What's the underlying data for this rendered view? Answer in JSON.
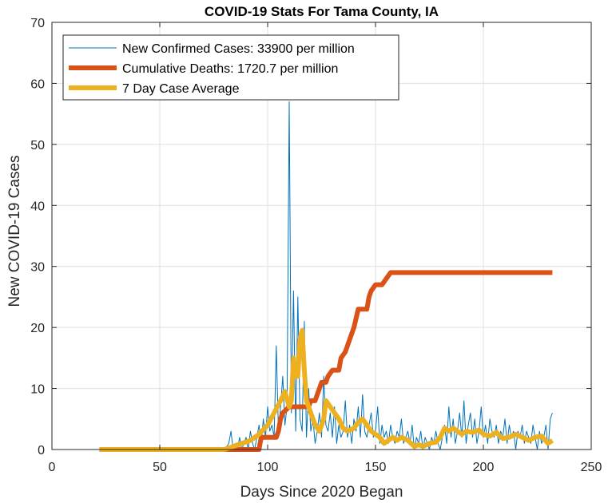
{
  "chart_data": {
    "type": "line",
    "title": "COVID-19 Stats For Tama County, IA",
    "xlabel": "Days Since 2020 Began",
    "ylabel": "New COVID-19 Cases",
    "xlim": [
      0,
      250
    ],
    "ylim": [
      0,
      70
    ],
    "xticks": [
      0,
      50,
      100,
      150,
      200,
      250
    ],
    "yticks": [
      0,
      10,
      20,
      30,
      40,
      50,
      60,
      70
    ],
    "grid": true,
    "legend_position": "top-left",
    "series": [
      {
        "name": "New Confirmed Cases: 33900 per million",
        "color": "#0072BD",
        "width": "thin",
        "points": [
          [
            22,
            0
          ],
          [
            40,
            0
          ],
          [
            60,
            0
          ],
          [
            80,
            0
          ],
          [
            82,
            1
          ],
          [
            83,
            3
          ],
          [
            84,
            0
          ],
          [
            85,
            1
          ],
          [
            86,
            0
          ],
          [
            87,
            2
          ],
          [
            88,
            0
          ],
          [
            89,
            1
          ],
          [
            90,
            2
          ],
          [
            91,
            0
          ],
          [
            92,
            3
          ],
          [
            93,
            1
          ],
          [
            94,
            0
          ],
          [
            95,
            2
          ],
          [
            96,
            4
          ],
          [
            97,
            1
          ],
          [
            98,
            5
          ],
          [
            99,
            2
          ],
          [
            100,
            7
          ],
          [
            101,
            3
          ],
          [
            102,
            4
          ],
          [
            103,
            2
          ],
          [
            104,
            17
          ],
          [
            105,
            3
          ],
          [
            106,
            7
          ],
          [
            107,
            12
          ],
          [
            108,
            4
          ],
          [
            109,
            7
          ],
          [
            110,
            57
          ],
          [
            111,
            6
          ],
          [
            112,
            26
          ],
          [
            113,
            3
          ],
          [
            114,
            25
          ],
          [
            115,
            5
          ],
          [
            116,
            3
          ],
          [
            117,
            21
          ],
          [
            118,
            2
          ],
          [
            119,
            10
          ],
          [
            120,
            3
          ],
          [
            121,
            5
          ],
          [
            122,
            1
          ],
          [
            123,
            3
          ],
          [
            124,
            6
          ],
          [
            125,
            2
          ],
          [
            126,
            12
          ],
          [
            127,
            4
          ],
          [
            128,
            3
          ],
          [
            129,
            6
          ],
          [
            130,
            2
          ],
          [
            131,
            7
          ],
          [
            132,
            1
          ],
          [
            133,
            4
          ],
          [
            134,
            2
          ],
          [
            135,
            3
          ],
          [
            136,
            8
          ],
          [
            137,
            2
          ],
          [
            138,
            4
          ],
          [
            139,
            1
          ],
          [
            140,
            5
          ],
          [
            141,
            3
          ],
          [
            142,
            7
          ],
          [
            143,
            2
          ],
          [
            144,
            9
          ],
          [
            145,
            3
          ],
          [
            146,
            2
          ],
          [
            147,
            4
          ],
          [
            148,
            6
          ],
          [
            149,
            2
          ],
          [
            150,
            3
          ],
          [
            151,
            7
          ],
          [
            152,
            1
          ],
          [
            153,
            4
          ],
          [
            154,
            2
          ],
          [
            155,
            3
          ],
          [
            156,
            1
          ],
          [
            157,
            4
          ],
          [
            158,
            2
          ],
          [
            159,
            1
          ],
          [
            160,
            3
          ],
          [
            161,
            2
          ],
          [
            162,
            5
          ],
          [
            163,
            1
          ],
          [
            164,
            2
          ],
          [
            165,
            3
          ],
          [
            166,
            1
          ],
          [
            167,
            4
          ],
          [
            168,
            0
          ],
          [
            169,
            2
          ],
          [
            170,
            1
          ],
          [
            171,
            3
          ],
          [
            172,
            0
          ],
          [
            173,
            2
          ],
          [
            174,
            1
          ],
          [
            175,
            0
          ],
          [
            176,
            2
          ],
          [
            177,
            1
          ],
          [
            178,
            3
          ],
          [
            179,
            1
          ],
          [
            180,
            0
          ],
          [
            181,
            2
          ],
          [
            182,
            4
          ],
          [
            183,
            1
          ],
          [
            184,
            7
          ],
          [
            185,
            2
          ],
          [
            186,
            5
          ],
          [
            187,
            1
          ],
          [
            188,
            3
          ],
          [
            189,
            6
          ],
          [
            190,
            2
          ],
          [
            191,
            8
          ],
          [
            192,
            1
          ],
          [
            193,
            4
          ],
          [
            194,
            6
          ],
          [
            195,
            2
          ],
          [
            196,
            5
          ],
          [
            197,
            1
          ],
          [
            198,
            3
          ],
          [
            199,
            7
          ],
          [
            200,
            2
          ],
          [
            201,
            4
          ],
          [
            202,
            1
          ],
          [
            203,
            5
          ],
          [
            204,
            3
          ],
          [
            205,
            2
          ],
          [
            206,
            4
          ],
          [
            207,
            1
          ],
          [
            208,
            3
          ],
          [
            209,
            2
          ],
          [
            210,
            5
          ],
          [
            211,
            1
          ],
          [
            212,
            4
          ],
          [
            213,
            2
          ],
          [
            214,
            3
          ],
          [
            215,
            0
          ],
          [
            216,
            3
          ],
          [
            217,
            2
          ],
          [
            218,
            4
          ],
          [
            219,
            1
          ],
          [
            220,
            3
          ],
          [
            221,
            2
          ],
          [
            222,
            1
          ],
          [
            223,
            4
          ],
          [
            224,
            2
          ],
          [
            225,
            0
          ],
          [
            226,
            3
          ],
          [
            227,
            1
          ],
          [
            228,
            2
          ],
          [
            229,
            4
          ],
          [
            230,
            0
          ],
          [
            231,
            5
          ],
          [
            232,
            6
          ]
        ]
      },
      {
        "name": "Cumulative Deaths: 1720.7 per million",
        "color": "#D95319",
        "width": "thick",
        "points": [
          [
            22,
            0
          ],
          [
            96,
            0
          ],
          [
            97,
            2
          ],
          [
            104,
            2
          ],
          [
            105,
            3
          ],
          [
            106,
            5
          ],
          [
            107,
            6
          ],
          [
            110,
            7
          ],
          [
            119,
            7
          ],
          [
            120,
            8
          ],
          [
            122,
            8
          ],
          [
            123,
            9
          ],
          [
            124,
            10
          ],
          [
            125,
            11
          ],
          [
            127,
            11
          ],
          [
            128,
            12
          ],
          [
            130,
            13
          ],
          [
            133,
            13
          ],
          [
            134,
            15
          ],
          [
            136,
            16
          ],
          [
            138,
            18
          ],
          [
            140,
            20
          ],
          [
            142,
            23
          ],
          [
            146,
            23
          ],
          [
            147,
            25
          ],
          [
            148,
            26
          ],
          [
            150,
            27
          ],
          [
            153,
            27
          ],
          [
            155,
            28
          ],
          [
            157,
            29
          ],
          [
            232,
            29
          ]
        ]
      },
      {
        "name": "7 Day Case Average",
        "color": "#EDB120",
        "width": "thick",
        "points": [
          [
            22,
            0
          ],
          [
            80,
            0
          ],
          [
            84,
            0.5
          ],
          [
            88,
            1
          ],
          [
            92,
            1.5
          ],
          [
            96,
            2.5
          ],
          [
            100,
            4
          ],
          [
            103,
            6
          ],
          [
            106,
            8
          ],
          [
            108,
            9.5
          ],
          [
            110,
            7
          ],
          [
            111,
            8
          ],
          [
            112,
            15
          ],
          [
            113,
            12
          ],
          [
            114,
            12
          ],
          [
            115,
            18
          ],
          [
            116,
            19.5
          ],
          [
            117,
            13
          ],
          [
            118,
            8
          ],
          [
            120,
            6
          ],
          [
            122,
            4
          ],
          [
            124,
            3
          ],
          [
            126,
            5
          ],
          [
            127,
            8
          ],
          [
            129,
            7
          ],
          [
            131,
            6
          ],
          [
            133,
            5
          ],
          [
            135,
            3.5
          ],
          [
            137,
            3
          ],
          [
            140,
            3.5
          ],
          [
            142,
            4.5
          ],
          [
            144,
            5
          ],
          [
            146,
            4
          ],
          [
            148,
            3
          ],
          [
            150,
            2.5
          ],
          [
            152,
            2
          ],
          [
            154,
            1
          ],
          [
            156,
            1.5
          ],
          [
            158,
            2
          ],
          [
            160,
            1.5
          ],
          [
            162,
            2
          ],
          [
            165,
            1.5
          ],
          [
            168,
            0.5
          ],
          [
            170,
            0.8
          ],
          [
            172,
            0.5
          ],
          [
            175,
            1
          ],
          [
            178,
            1.2
          ],
          [
            180,
            2
          ],
          [
            182,
            3.5
          ],
          [
            184,
            3
          ],
          [
            186,
            3.5
          ],
          [
            188,
            3
          ],
          [
            190,
            2.5
          ],
          [
            192,
            3
          ],
          [
            195,
            2.8
          ],
          [
            198,
            3.2
          ],
          [
            200,
            2.5
          ],
          [
            203,
            2.2
          ],
          [
            206,
            2.8
          ],
          [
            209,
            1.8
          ],
          [
            212,
            2
          ],
          [
            215,
            2.5
          ],
          [
            218,
            2
          ],
          [
            221,
            1.5
          ],
          [
            224,
            2
          ],
          [
            227,
            2.2
          ],
          [
            230,
            1
          ],
          [
            232,
            1.5
          ]
        ]
      }
    ]
  }
}
